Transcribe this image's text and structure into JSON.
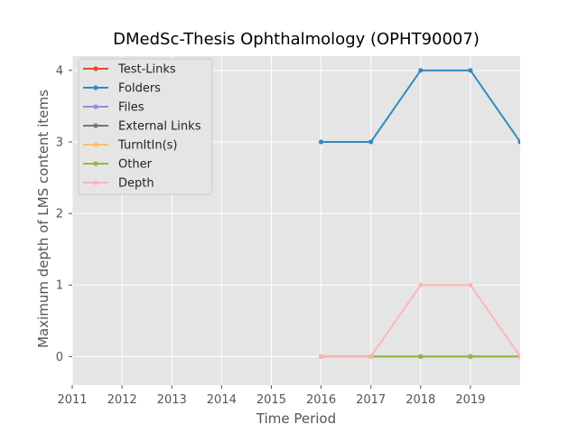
{
  "chart_data": {
    "type": "line",
    "title": "DMedSc-Thesis Ophthalmology (OPHT90007)",
    "xlabel": "Time Period",
    "ylabel": "Maximum depth of LMS content items",
    "xlim": [
      2011,
      2020
    ],
    "ylim": [
      -0.4,
      4.2
    ],
    "x_ticks": [
      "2011",
      "2012",
      "2013",
      "2014",
      "2015",
      "2016",
      "2017",
      "2018",
      "2019"
    ],
    "y_ticks": [
      "0",
      "1",
      "2",
      "3",
      "4"
    ],
    "x": [
      2016,
      2017,
      2018,
      2019,
      2020
    ],
    "legend_position": "top-left",
    "series": [
      {
        "name": "Test-Links",
        "color": "#E24A33",
        "values": [
          0,
          0,
          0,
          0,
          0
        ]
      },
      {
        "name": "Folders",
        "color": "#348ABD",
        "values": [
          3,
          3,
          4,
          4,
          3
        ]
      },
      {
        "name": "Files",
        "color": "#988ED5",
        "values": [
          0,
          0,
          0,
          0,
          0
        ]
      },
      {
        "name": "External Links",
        "color": "#777777",
        "values": [
          0,
          0,
          0,
          0,
          0
        ]
      },
      {
        "name": "TurnItIn(s)",
        "color": "#FBC15E",
        "values": [
          0,
          0,
          0,
          0,
          0
        ]
      },
      {
        "name": "Other",
        "color": "#8EBA42",
        "values": [
          0,
          0,
          0,
          0,
          0
        ]
      },
      {
        "name": "Depth",
        "color": "#FFB5B8",
        "values": [
          0,
          0,
          1,
          1,
          0
        ]
      }
    ]
  }
}
